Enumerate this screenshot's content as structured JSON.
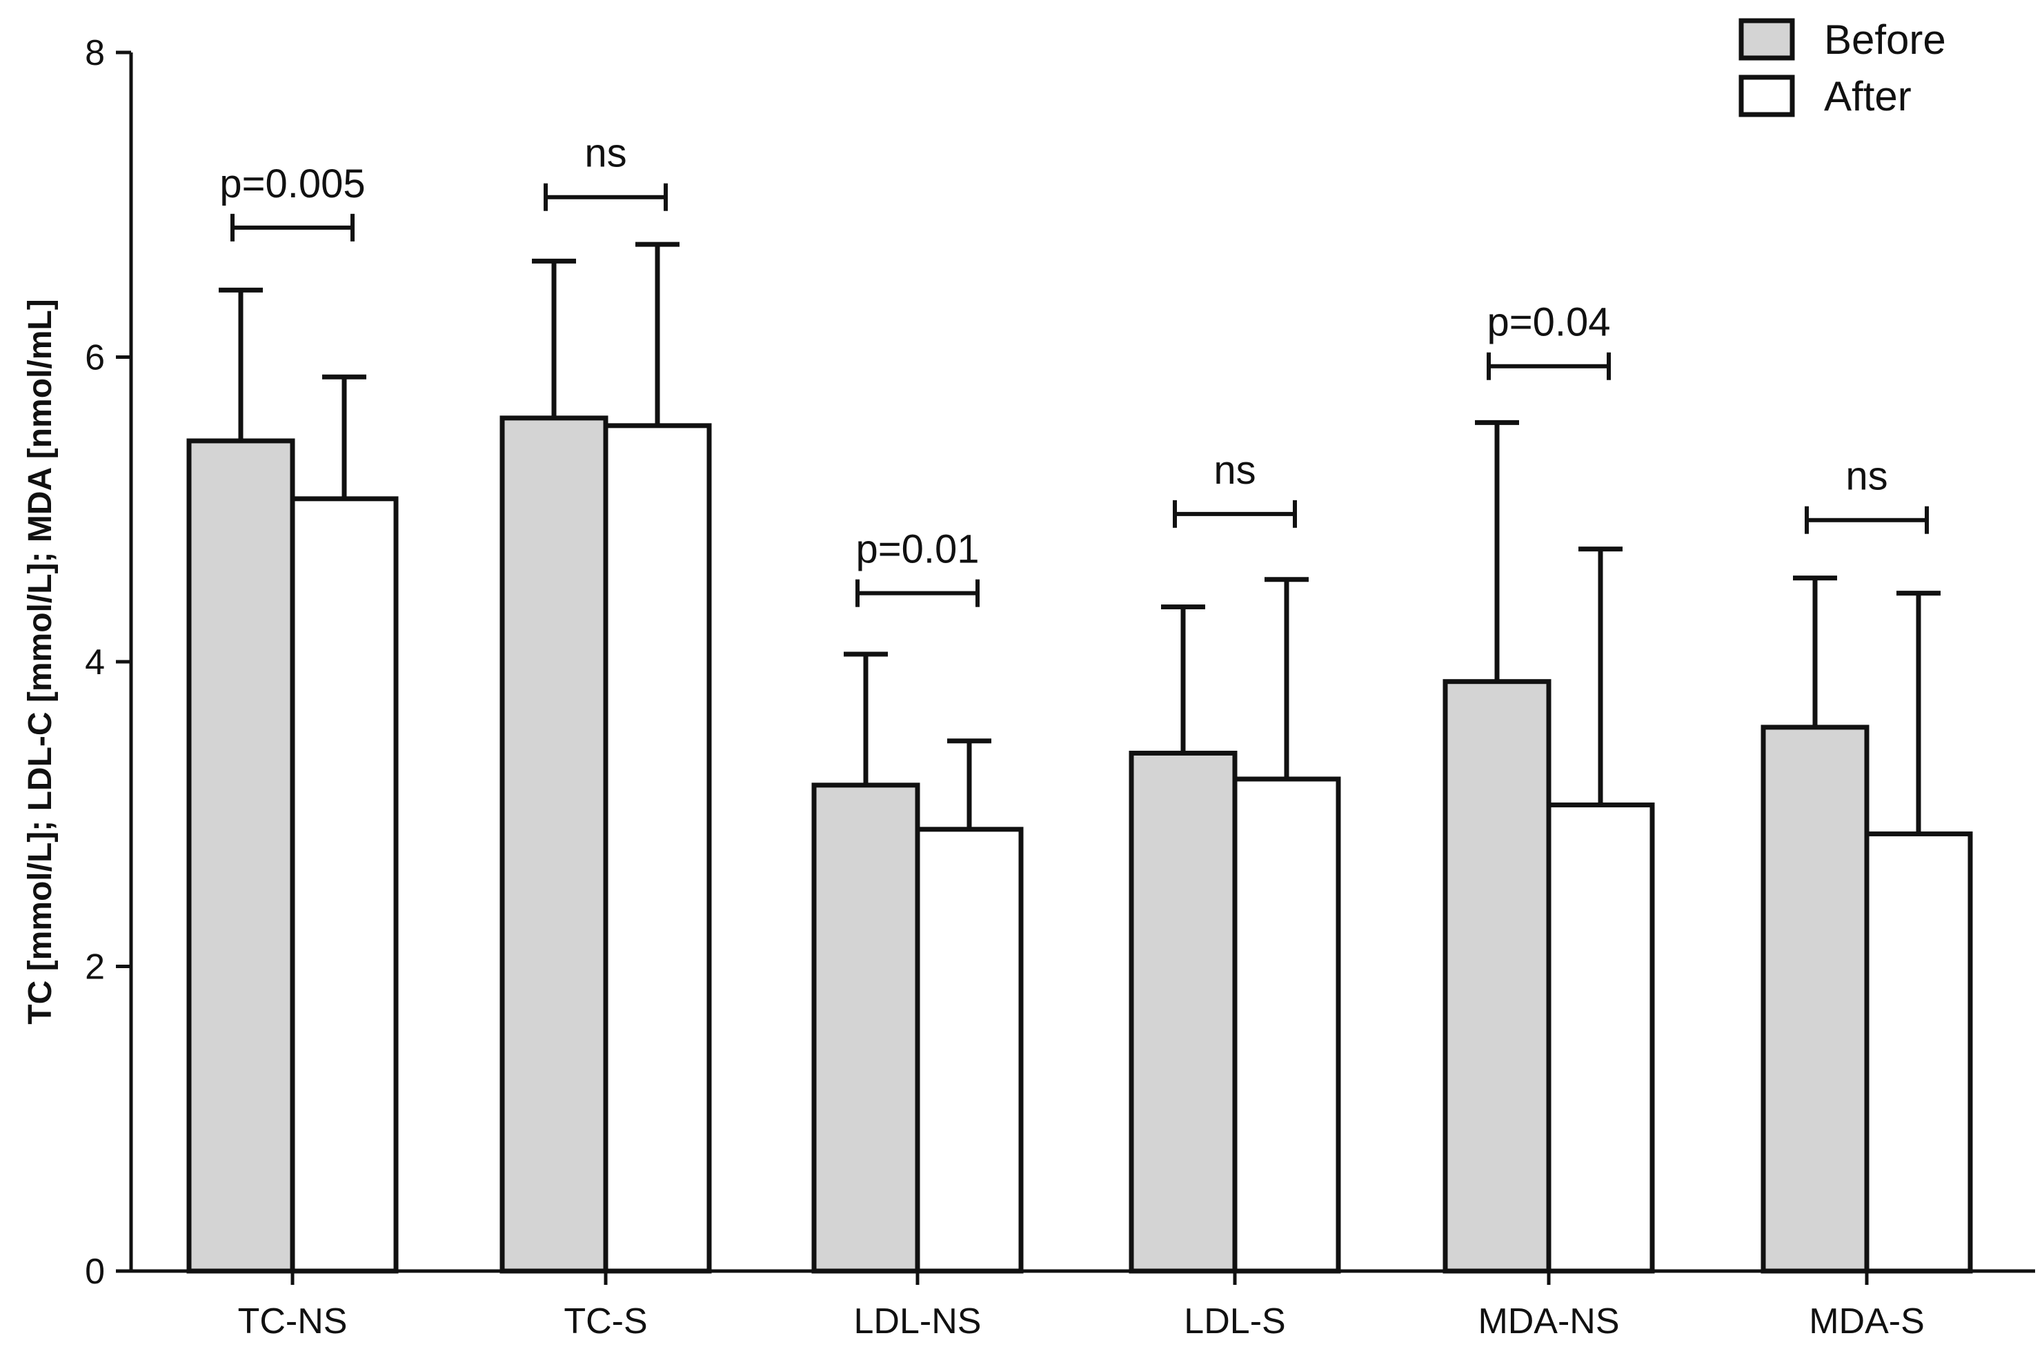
{
  "chart_data": {
    "type": "bar",
    "title": "",
    "xlabel": "",
    "ylabel": "TC [mmol/L]; LDL-C [mmol/L]; MDA [nmol/mL]",
    "ylim": [
      0,
      8
    ],
    "yticks": [
      0,
      2,
      4,
      6,
      8
    ],
    "grid": false,
    "legend_position": "top-right",
    "categories": [
      "TC-NS",
      "TC-S",
      "LDL-NS",
      "LDL-S",
      "MDA-NS",
      "MDA-S"
    ],
    "series": [
      {
        "name": "Before",
        "color": "#d4d4d4",
        "values": [
          5.45,
          5.6,
          3.19,
          3.4,
          3.87,
          3.57
        ],
        "error_upper": [
          6.44,
          6.63,
          4.05,
          4.36,
          5.57,
          4.55
        ]
      },
      {
        "name": "After",
        "color": "#ffffff",
        "values": [
          5.07,
          5.55,
          2.9,
          3.23,
          3.06,
          2.87
        ],
        "error_upper": [
          5.87,
          6.74,
          3.48,
          4.54,
          4.74,
          4.45
        ]
      }
    ],
    "annotations": [
      {
        "category": "TC-NS",
        "text": "p=0.005",
        "y": 6.85
      },
      {
        "category": "TC-S",
        "text": "ns",
        "y": 7.05
      },
      {
        "category": "LDL-NS",
        "text": "p=0.01",
        "y": 4.45
      },
      {
        "category": "LDL-S",
        "text": "ns",
        "y": 4.97
      },
      {
        "category": "MDA-NS",
        "text": "p=0.04",
        "y": 5.94
      },
      {
        "category": "MDA-S",
        "text": "ns",
        "y": 4.93
      }
    ]
  }
}
